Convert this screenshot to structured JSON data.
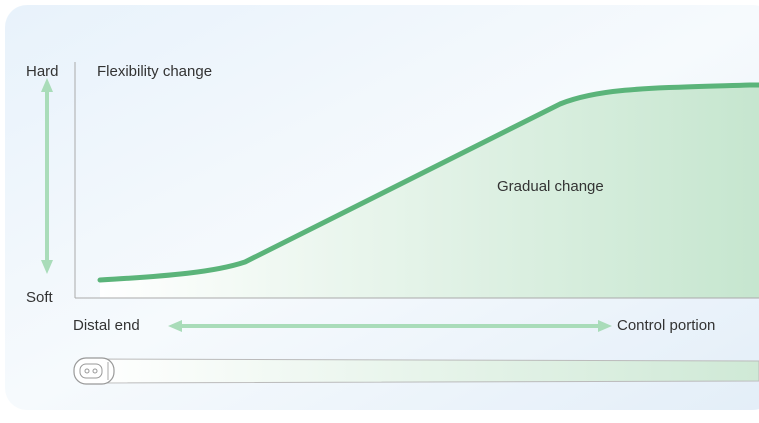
{
  "axis": {
    "top_label": "Hard",
    "bottom_label": "Soft",
    "title": "Flexibility change"
  },
  "curve_label": "Gradual change",
  "scope": {
    "left_label": "Distal end",
    "right_label": "Control portion"
  }
}
